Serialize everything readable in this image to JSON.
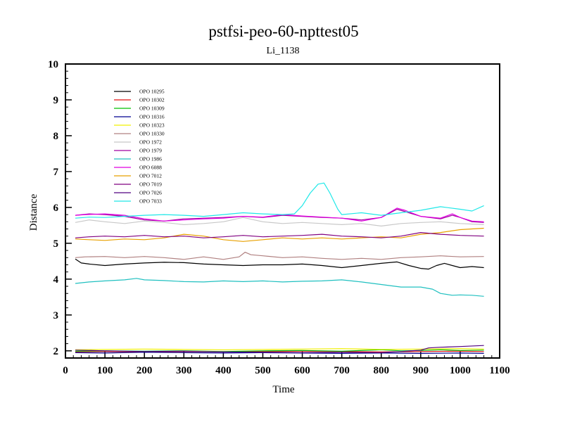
{
  "chart_data": {
    "type": "line",
    "title": "pstfsi-peo-60-npttest05",
    "subtitle": "Li_1138",
    "xlabel": "Time",
    "ylabel": "Distance",
    "xlim": [
      0,
      1100
    ],
    "ylim": [
      1.8,
      10
    ],
    "xticks": [
      0,
      100,
      200,
      300,
      400,
      500,
      600,
      700,
      800,
      900,
      1000,
      1100
    ],
    "yticks": [
      2,
      3,
      4,
      5,
      6,
      7,
      8,
      9,
      10
    ],
    "x_minor_step": 20,
    "y_minor_step": 0.2,
    "grid": false,
    "legend_position": "top-left",
    "series": [
      {
        "name": "OPO 10295",
        "color": "#000000",
        "points": [
          [
            25,
            4.56
          ],
          [
            40,
            4.45
          ],
          [
            60,
            4.42
          ],
          [
            100,
            4.38
          ],
          [
            150,
            4.42
          ],
          [
            200,
            4.45
          ],
          [
            250,
            4.47
          ],
          [
            300,
            4.46
          ],
          [
            350,
            4.42
          ],
          [
            400,
            4.4
          ],
          [
            450,
            4.38
          ],
          [
            500,
            4.4
          ],
          [
            550,
            4.4
          ],
          [
            600,
            4.42
          ],
          [
            650,
            4.38
          ],
          [
            700,
            4.32
          ],
          [
            750,
            4.38
          ],
          [
            800,
            4.44
          ],
          [
            840,
            4.48
          ],
          [
            870,
            4.38
          ],
          [
            900,
            4.3
          ],
          [
            920,
            4.28
          ],
          [
            940,
            4.38
          ],
          [
            960,
            4.44
          ],
          [
            980,
            4.38
          ],
          [
            1000,
            4.32
          ],
          [
            1030,
            4.35
          ],
          [
            1060,
            4.32
          ]
        ]
      },
      {
        "name": "OPO 10302",
        "color": "#e01010",
        "points": [
          [
            25,
            1.97
          ],
          [
            100,
            1.98
          ],
          [
            200,
            1.97
          ],
          [
            300,
            1.98
          ],
          [
            400,
            1.97
          ],
          [
            500,
            1.98
          ],
          [
            600,
            1.99
          ],
          [
            700,
            1.98
          ],
          [
            800,
            1.97
          ],
          [
            900,
            1.98
          ],
          [
            1000,
            1.99
          ],
          [
            1060,
            1.98
          ]
        ]
      },
      {
        "name": "OPO 10309",
        "color": "#00c000",
        "points": [
          [
            25,
            1.99
          ],
          [
            100,
            2.0
          ],
          [
            200,
            1.99
          ],
          [
            300,
            2.0
          ],
          [
            400,
            1.98
          ],
          [
            500,
            2.0
          ],
          [
            600,
            2.01
          ],
          [
            700,
            1.99
          ],
          [
            800,
            2.03
          ],
          [
            850,
            2.0
          ],
          [
            900,
            2.01
          ],
          [
            950,
            2.03
          ],
          [
            1000,
            2.01
          ],
          [
            1060,
            2.02
          ]
        ]
      },
      {
        "name": "OPO 10316",
        "color": "#000090",
        "points": [
          [
            25,
            1.95
          ],
          [
            100,
            1.94
          ],
          [
            200,
            1.96
          ],
          [
            300,
            1.95
          ],
          [
            400,
            1.94
          ],
          [
            500,
            1.95
          ],
          [
            600,
            1.94
          ],
          [
            700,
            1.93
          ],
          [
            800,
            1.94
          ],
          [
            900,
            1.93
          ],
          [
            1000,
            1.94
          ],
          [
            1060,
            1.93
          ]
        ]
      },
      {
        "name": "OPO 10323",
        "color": "#f0f000",
        "points": [
          [
            25,
            2.03
          ],
          [
            100,
            2.04
          ],
          [
            200,
            2.05
          ],
          [
            300,
            2.04
          ],
          [
            400,
            2.03
          ],
          [
            500,
            2.04
          ],
          [
            600,
            2.05
          ],
          [
            700,
            2.06
          ],
          [
            800,
            2.04
          ],
          [
            900,
            2.05
          ],
          [
            1000,
            2.06
          ],
          [
            1060,
            2.05
          ]
        ]
      },
      {
        "name": "OPO 10330",
        "color": "#b08080",
        "points": [
          [
            25,
            4.6
          ],
          [
            50,
            4.62
          ],
          [
            100,
            4.63
          ],
          [
            150,
            4.6
          ],
          [
            200,
            4.63
          ],
          [
            250,
            4.6
          ],
          [
            300,
            4.55
          ],
          [
            350,
            4.62
          ],
          [
            400,
            4.55
          ],
          [
            440,
            4.62
          ],
          [
            455,
            4.75
          ],
          [
            470,
            4.68
          ],
          [
            500,
            4.65
          ],
          [
            550,
            4.6
          ],
          [
            600,
            4.62
          ],
          [
            650,
            4.58
          ],
          [
            700,
            4.55
          ],
          [
            750,
            4.58
          ],
          [
            800,
            4.55
          ],
          [
            850,
            4.6
          ],
          [
            900,
            4.62
          ],
          [
            950,
            4.65
          ],
          [
            1000,
            4.62
          ],
          [
            1060,
            4.63
          ]
        ]
      },
      {
        "name": "OPO 1972",
        "color": "#c8c8c8",
        "points": [
          [
            25,
            5.58
          ],
          [
            60,
            5.65
          ],
          [
            100,
            5.6
          ],
          [
            150,
            5.55
          ],
          [
            200,
            5.62
          ],
          [
            250,
            5.58
          ],
          [
            300,
            5.52
          ],
          [
            350,
            5.55
          ],
          [
            400,
            5.6
          ],
          [
            450,
            5.72
          ],
          [
            500,
            5.6
          ],
          [
            550,
            5.55
          ],
          [
            600,
            5.58
          ],
          [
            650,
            5.55
          ],
          [
            700,
            5.52
          ],
          [
            750,
            5.55
          ],
          [
            800,
            5.48
          ],
          [
            850,
            5.55
          ],
          [
            900,
            5.58
          ],
          [
            950,
            5.6
          ],
          [
            1000,
            5.55
          ],
          [
            1060,
            5.52
          ]
        ]
      },
      {
        "name": "OPO 1979",
        "color": "#a000a0",
        "points": [
          [
            25,
            5.78
          ],
          [
            60,
            5.82
          ],
          [
            100,
            5.8
          ],
          [
            150,
            5.75
          ],
          [
            200,
            5.65
          ],
          [
            250,
            5.62
          ],
          [
            300,
            5.68
          ],
          [
            350,
            5.7
          ],
          [
            400,
            5.72
          ],
          [
            450,
            5.75
          ],
          [
            500,
            5.72
          ],
          [
            550,
            5.78
          ],
          [
            600,
            5.75
          ],
          [
            650,
            5.72
          ],
          [
            700,
            5.7
          ],
          [
            750,
            5.65
          ],
          [
            800,
            5.72
          ],
          [
            840,
            5.95
          ],
          [
            870,
            5.85
          ],
          [
            900,
            5.75
          ],
          [
            950,
            5.68
          ],
          [
            980,
            5.78
          ],
          [
            1000,
            5.72
          ],
          [
            1030,
            5.6
          ],
          [
            1060,
            5.58
          ]
        ]
      },
      {
        "name": "OPO 1986",
        "color": "#20c0c0",
        "points": [
          [
            25,
            3.88
          ],
          [
            60,
            3.92
          ],
          [
            100,
            3.95
          ],
          [
            150,
            3.98
          ],
          [
            180,
            4.02
          ],
          [
            200,
            3.98
          ],
          [
            250,
            3.96
          ],
          [
            300,
            3.93
          ],
          [
            350,
            3.92
          ],
          [
            400,
            3.95
          ],
          [
            450,
            3.93
          ],
          [
            500,
            3.95
          ],
          [
            550,
            3.92
          ],
          [
            600,
            3.94
          ],
          [
            650,
            3.95
          ],
          [
            700,
            3.98
          ],
          [
            750,
            3.92
          ],
          [
            800,
            3.85
          ],
          [
            850,
            3.78
          ],
          [
            900,
            3.78
          ],
          [
            930,
            3.72
          ],
          [
            950,
            3.6
          ],
          [
            980,
            3.55
          ],
          [
            1000,
            3.56
          ],
          [
            1030,
            3.55
          ],
          [
            1060,
            3.52
          ]
        ]
      },
      {
        "name": "OPO 6088",
        "color": "#e000e0",
        "points": [
          [
            25,
            5.78
          ],
          [
            50,
            5.8
          ],
          [
            100,
            5.82
          ],
          [
            150,
            5.78
          ],
          [
            200,
            5.68
          ],
          [
            250,
            5.62
          ],
          [
            300,
            5.65
          ],
          [
            350,
            5.68
          ],
          [
            400,
            5.7
          ],
          [
            450,
            5.75
          ],
          [
            500,
            5.73
          ],
          [
            550,
            5.8
          ],
          [
            600,
            5.76
          ],
          [
            650,
            5.73
          ],
          [
            700,
            5.7
          ],
          [
            750,
            5.62
          ],
          [
            800,
            5.72
          ],
          [
            840,
            5.98
          ],
          [
            860,
            5.92
          ],
          [
            900,
            5.75
          ],
          [
            950,
            5.7
          ],
          [
            980,
            5.82
          ],
          [
            1000,
            5.72
          ],
          [
            1030,
            5.62
          ],
          [
            1060,
            5.6
          ]
        ]
      },
      {
        "name": "OPO 7012",
        "color": "#e8a000",
        "points": [
          [
            25,
            5.12
          ],
          [
            60,
            5.1
          ],
          [
            100,
            5.08
          ],
          [
            150,
            5.12
          ],
          [
            200,
            5.1
          ],
          [
            250,
            5.15
          ],
          [
            300,
            5.25
          ],
          [
            350,
            5.2
          ],
          [
            400,
            5.1
          ],
          [
            450,
            5.05
          ],
          [
            500,
            5.1
          ],
          [
            550,
            5.15
          ],
          [
            600,
            5.12
          ],
          [
            650,
            5.15
          ],
          [
            700,
            5.12
          ],
          [
            750,
            5.15
          ],
          [
            800,
            5.18
          ],
          [
            850,
            5.15
          ],
          [
            900,
            5.25
          ],
          [
            950,
            5.3
          ],
          [
            1000,
            5.38
          ],
          [
            1060,
            5.42
          ]
        ]
      },
      {
        "name": "OPO 7019",
        "color": "#800080",
        "points": [
          [
            25,
            5.15
          ],
          [
            60,
            5.18
          ],
          [
            100,
            5.2
          ],
          [
            150,
            5.18
          ],
          [
            200,
            5.22
          ],
          [
            250,
            5.18
          ],
          [
            300,
            5.2
          ],
          [
            350,
            5.15
          ],
          [
            400,
            5.18
          ],
          [
            450,
            5.22
          ],
          [
            500,
            5.18
          ],
          [
            550,
            5.2
          ],
          [
            600,
            5.22
          ],
          [
            650,
            5.25
          ],
          [
            700,
            5.2
          ],
          [
            750,
            5.18
          ],
          [
            800,
            5.15
          ],
          [
            850,
            5.2
          ],
          [
            900,
            5.3
          ],
          [
            950,
            5.25
          ],
          [
            1000,
            5.22
          ],
          [
            1060,
            5.2
          ]
        ]
      },
      {
        "name": "OPO 7026",
        "color": "#500080",
        "points": [
          [
            25,
            2.02
          ],
          [
            100,
            2.0
          ],
          [
            200,
            1.98
          ],
          [
            300,
            1.99
          ],
          [
            400,
            1.97
          ],
          [
            500,
            1.96
          ],
          [
            600,
            1.95
          ],
          [
            700,
            1.96
          ],
          [
            800,
            1.95
          ],
          [
            850,
            1.98
          ],
          [
            900,
            2.02
          ],
          [
            920,
            2.08
          ],
          [
            950,
            2.1
          ],
          [
            1000,
            2.12
          ],
          [
            1060,
            2.15
          ]
        ]
      },
      {
        "name": "OPO 7033",
        "color": "#20e8e8",
        "points": [
          [
            25,
            5.7
          ],
          [
            60,
            5.73
          ],
          [
            100,
            5.72
          ],
          [
            150,
            5.75
          ],
          [
            200,
            5.78
          ],
          [
            250,
            5.8
          ],
          [
            300,
            5.78
          ],
          [
            350,
            5.75
          ],
          [
            400,
            5.8
          ],
          [
            450,
            5.85
          ],
          [
            500,
            5.82
          ],
          [
            550,
            5.8
          ],
          [
            580,
            5.82
          ],
          [
            600,
            6.05
          ],
          [
            620,
            6.4
          ],
          [
            640,
            6.65
          ],
          [
            655,
            6.68
          ],
          [
            670,
            6.4
          ],
          [
            690,
            5.95
          ],
          [
            700,
            5.8
          ],
          [
            750,
            5.85
          ],
          [
            800,
            5.78
          ],
          [
            850,
            5.85
          ],
          [
            900,
            5.92
          ],
          [
            950,
            6.02
          ],
          [
            1000,
            5.95
          ],
          [
            1030,
            5.9
          ],
          [
            1060,
            6.05
          ]
        ]
      }
    ]
  }
}
